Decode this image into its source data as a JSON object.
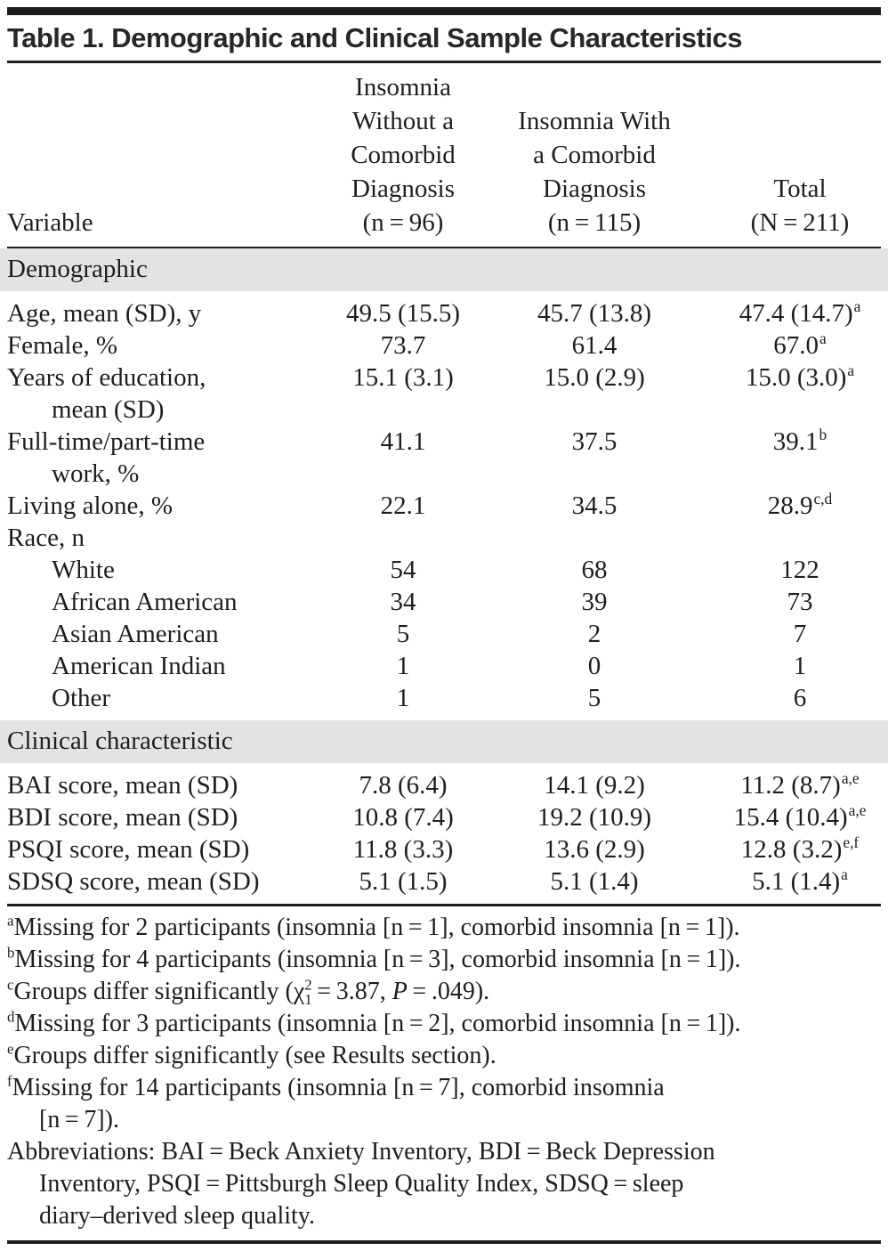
{
  "title": "Table 1. Demographic and Clinical Sample Characteristics",
  "colors": {
    "rule": "#1d1d1d",
    "text": "#1e1e1e",
    "section_band_bg": "#e3e3e3",
    "page_bg": "#ffffff"
  },
  "table": {
    "columns": [
      {
        "key": "variable",
        "lines": [
          "Variable"
        ],
        "align": "left"
      },
      {
        "key": "insomnia-without-comorbid",
        "lines": [
          "Insomnia",
          "Without a",
          "Comorbid",
          "Diagnosis",
          "(n = 96)"
        ],
        "align": "center"
      },
      {
        "key": "insomnia-with-comorbid",
        "lines": [
          "Insomnia With",
          "a Comorbid",
          "Diagnosis",
          "(n = 115)"
        ],
        "align": "center"
      },
      {
        "key": "total",
        "lines": [
          "Total",
          "(N = 211)"
        ],
        "align": "center"
      }
    ],
    "sections": [
      {
        "header": "Demographic",
        "rows": [
          {
            "label": [
              "Age, mean (SD), y"
            ],
            "indent": false,
            "cells": [
              {
                "t": "49.5 (15.5)"
              },
              {
                "t": "45.7 (13.8)"
              },
              {
                "t": "47.4 (14.7)",
                "s": "a"
              }
            ]
          },
          {
            "label": [
              "Female, %"
            ],
            "indent": false,
            "cells": [
              {
                "t": "73.7"
              },
              {
                "t": "61.4"
              },
              {
                "t": "67.0",
                "s": "a"
              }
            ]
          },
          {
            "label": [
              "Years of education,",
              "mean (SD)"
            ],
            "indent": false,
            "cells": [
              {
                "t": "15.1 (3.1)"
              },
              {
                "t": "15.0 (2.9)"
              },
              {
                "t": "15.0 (3.0)",
                "s": "a"
              }
            ]
          },
          {
            "label": [
              "Full-time/part-time",
              "work, %"
            ],
            "indent": false,
            "cells": [
              {
                "t": "41.1"
              },
              {
                "t": "37.5"
              },
              {
                "t": "39.1",
                "s": "b"
              }
            ]
          },
          {
            "label": [
              "Living alone, %"
            ],
            "indent": false,
            "cells": [
              {
                "t": "22.1"
              },
              {
                "t": "34.5"
              },
              {
                "t": "28.9",
                "s": "c,d"
              }
            ]
          },
          {
            "label": [
              "Race, n"
            ],
            "indent": false,
            "cells": [
              null,
              null,
              null
            ]
          },
          {
            "label": [
              "White"
            ],
            "indent": true,
            "cells": [
              {
                "t": "54"
              },
              {
                "t": "68"
              },
              {
                "t": "122"
              }
            ]
          },
          {
            "label": [
              "African American"
            ],
            "indent": true,
            "cells": [
              {
                "t": "34"
              },
              {
                "t": "39"
              },
              {
                "t": "73"
              }
            ]
          },
          {
            "label": [
              "Asian American"
            ],
            "indent": true,
            "cells": [
              {
                "t": "5"
              },
              {
                "t": "2"
              },
              {
                "t": "7"
              }
            ]
          },
          {
            "label": [
              "American Indian"
            ],
            "indent": true,
            "cells": [
              {
                "t": "1"
              },
              {
                "t": "0"
              },
              {
                "t": "1"
              }
            ]
          },
          {
            "label": [
              "Other"
            ],
            "indent": true,
            "cells": [
              {
                "t": "1"
              },
              {
                "t": "5"
              },
              {
                "t": "6"
              }
            ]
          }
        ]
      },
      {
        "header": "Clinical characteristic",
        "rows": [
          {
            "label": [
              "BAI score, mean (SD)"
            ],
            "indent": false,
            "cells": [
              {
                "t": "7.8 (6.4)"
              },
              {
                "t": "14.1 (9.2)"
              },
              {
                "t": "11.2 (8.7)",
                "s": "a,e"
              }
            ]
          },
          {
            "label": [
              "BDI score, mean (SD)"
            ],
            "indent": false,
            "cells": [
              {
                "t": "10.8 (7.4)"
              },
              {
                "t": "19.2 (10.9)"
              },
              {
                "t": "15.4 (10.4)",
                "s": "a,e"
              }
            ]
          },
          {
            "label": [
              "PSQI score, mean (SD)"
            ],
            "indent": false,
            "cells": [
              {
                "t": "11.8 (3.3)"
              },
              {
                "t": "13.6 (2.9)"
              },
              {
                "t": "12.8 (3.2)",
                "s": "e,f"
              }
            ]
          },
          {
            "label": [
              "SDSQ score, mean (SD)"
            ],
            "indent": false,
            "cells": [
              {
                "t": "5.1 (1.5)"
              },
              {
                "t": "5.1 (1.4)"
              },
              {
                "t": "5.1 (1.4)",
                "s": "a"
              }
            ]
          }
        ]
      }
    ]
  },
  "footnotes": [
    {
      "marker": "a",
      "lines": [
        [
          {
            "t": "Missing for 2 participants (insomnia [n = 1], comorbid insomnia [n = 1])."
          }
        ]
      ]
    },
    {
      "marker": "b",
      "lines": [
        [
          {
            "t": "Missing for 4 participants (insomnia [n = 3], comorbid insomnia [n = 1])."
          }
        ]
      ]
    },
    {
      "marker": "c",
      "lines": [
        [
          {
            "t": "Groups differ significantly (χ"
          },
          {
            "t": "2",
            "st": "sup"
          },
          {
            "t": "1",
            "st": "sub"
          },
          {
            "t": " = 3.87, "
          },
          {
            "t": "P",
            "st": "i"
          },
          {
            "t": " = .049)."
          }
        ]
      ]
    },
    {
      "marker": "d",
      "lines": [
        [
          {
            "t": "Missing for 3 participants (insomnia [n = 2], comorbid insomnia [n = 1])."
          }
        ]
      ]
    },
    {
      "marker": "e",
      "lines": [
        [
          {
            "t": "Groups differ significantly (see Results section)."
          }
        ]
      ]
    },
    {
      "marker": "f",
      "lines": [
        [
          {
            "t": "Missing for 14 participants (insomnia [n = 7], comorbid insomnia"
          }
        ],
        [
          {
            "t": "[n = 7])."
          }
        ]
      ]
    },
    {
      "marker": "",
      "lines": [
        [
          {
            "t": "Abbreviations: BAI = Beck Anxiety Inventory, BDI = Beck Depression"
          }
        ],
        [
          {
            "t": "Inventory, PSQI = Pittsburgh Sleep Quality Index, SDSQ = sleep"
          }
        ],
        [
          {
            "t": "diary–derived sleep quality."
          }
        ]
      ]
    }
  ]
}
